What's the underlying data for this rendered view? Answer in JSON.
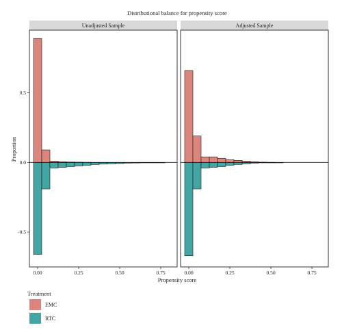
{
  "chart_data": {
    "type": "bar",
    "title": "Distributional balance for propensity score",
    "xlabel": "Propensity score",
    "ylabel": "Proportion",
    "xlim": [
      -0.05,
      0.85
    ],
    "ylim": [
      -0.75,
      0.95
    ],
    "x_ticks": [
      0.0,
      0.25,
      0.5,
      0.75
    ],
    "x_tick_labels": [
      "0.00",
      "0.25",
      "0.50",
      "0.75"
    ],
    "y_ticks": [
      -0.5,
      0.0,
      0.5
    ],
    "y_tick_labels": [
      "-0.5",
      "0.0",
      "0.5"
    ],
    "bin_width": 0.05,
    "bin_starts": [
      -0.025,
      0.025,
      0.075,
      0.125,
      0.175,
      0.225,
      0.275,
      0.325,
      0.375,
      0.425,
      0.475,
      0.525,
      0.575,
      0.625,
      0.675,
      0.725
    ],
    "legend": {
      "title": "Treatment",
      "position": "bottom-left",
      "items": [
        {
          "label": "EMC",
          "color": "#DC857C"
        },
        {
          "label": "RTC",
          "color": "#44A6A4"
        }
      ]
    },
    "panels": [
      {
        "name": "Unadjusted Sample",
        "series": [
          {
            "name": "EMC",
            "direction": "up",
            "color": "#DC857C",
            "values": [
              0.89,
              0.09,
              0.01,
              0.005,
              0.003,
              0.002,
              0.001,
              0,
              0,
              0,
              0,
              0,
              0,
              0,
              0,
              0
            ]
          },
          {
            "name": "RTC",
            "direction": "down",
            "color": "#44A6A4",
            "values": [
              0.66,
              0.19,
              0.04,
              0.035,
              0.03,
              0.025,
              0.02,
              0.015,
              0.012,
              0.01,
              0.008,
              0.005,
              0.004,
              0.003,
              0.002,
              0.001
            ]
          }
        ]
      },
      {
        "name": "Adjusted Sample",
        "series": [
          {
            "name": "EMC",
            "direction": "up",
            "color": "#DC857C",
            "values": [
              0.66,
              0.19,
              0.04,
              0.04,
              0.03,
              0.02,
              0.015,
              0.01,
              0.005,
              0.002,
              0.001,
              0,
              0,
              0,
              0,
              0
            ]
          },
          {
            "name": "RTC",
            "direction": "down",
            "color": "#44A6A4",
            "values": [
              0.67,
              0.19,
              0.04,
              0.035,
              0.03,
              0.02,
              0.015,
              0.01,
              0.005,
              0.003,
              0.002,
              0.001,
              0,
              0,
              0,
              0
            ]
          }
        ]
      }
    ]
  }
}
